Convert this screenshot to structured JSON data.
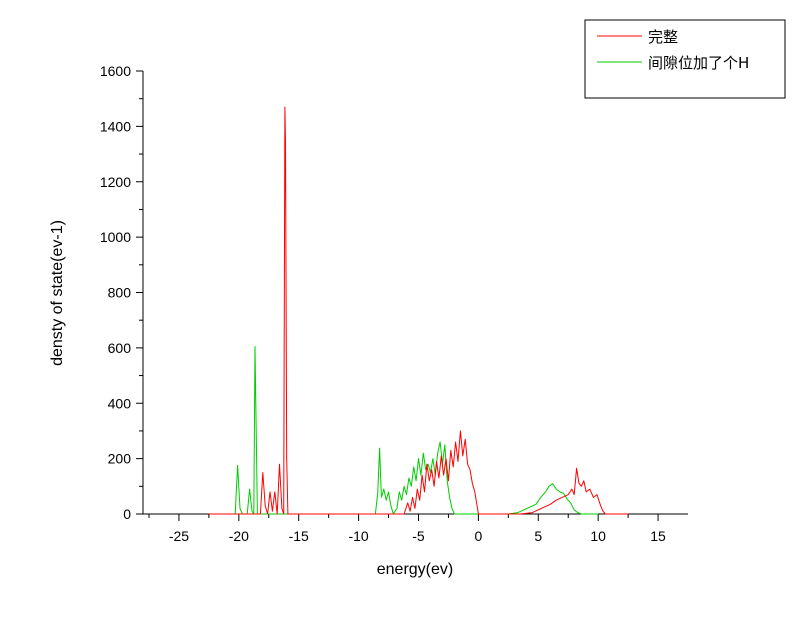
{
  "chart_data": {
    "type": "line",
    "xlabel": "energy(ev)",
    "ylabel": "densty of state(ev-1)",
    "xlim": [
      -28,
      17.5
    ],
    "ylim": [
      0,
      1600
    ],
    "xticks": [
      -25,
      -20,
      -15,
      -10,
      -5,
      0,
      5,
      10,
      15
    ],
    "yticks": [
      0,
      200,
      400,
      600,
      800,
      1000,
      1200,
      1400,
      1600
    ],
    "legend_position": "top-right",
    "series": [
      {
        "name": "完整",
        "color": "#ff0000",
        "points": [
          [
            -22.5,
            0
          ],
          [
            -18.2,
            0
          ],
          [
            -18.0,
            150
          ],
          [
            -17.8,
            30
          ],
          [
            -17.6,
            0
          ],
          [
            -17.4,
            80
          ],
          [
            -17.2,
            10
          ],
          [
            -17.0,
            80
          ],
          [
            -16.8,
            0
          ],
          [
            -16.6,
            180
          ],
          [
            -16.4,
            20
          ],
          [
            -16.25,
            0
          ],
          [
            -16.15,
            1470
          ],
          [
            -16.1,
            1340
          ],
          [
            -16.0,
            200
          ],
          [
            -15.9,
            0
          ],
          [
            -6.2,
            0
          ],
          [
            -5.9,
            40
          ],
          [
            -5.7,
            10
          ],
          [
            -5.5,
            60
          ],
          [
            -5.3,
            20
          ],
          [
            -5.1,
            90
          ],
          [
            -4.9,
            50
          ],
          [
            -4.7,
            140
          ],
          [
            -4.5,
            80
          ],
          [
            -4.3,
            180
          ],
          [
            -4.1,
            120
          ],
          [
            -3.9,
            160
          ],
          [
            -3.7,
            100
          ],
          [
            -3.5,
            190
          ],
          [
            -3.3,
            130
          ],
          [
            -3.1,
            210
          ],
          [
            -2.9,
            140
          ],
          [
            -2.7,
            200
          ],
          [
            -2.5,
            120
          ],
          [
            -2.3,
            230
          ],
          [
            -2.1,
            170
          ],
          [
            -1.9,
            260
          ],
          [
            -1.7,
            190
          ],
          [
            -1.5,
            300
          ],
          [
            -1.3,
            210
          ],
          [
            -1.1,
            270
          ],
          [
            -0.9,
            180
          ],
          [
            -0.7,
            160
          ],
          [
            -0.5,
            110
          ],
          [
            -0.3,
            80
          ],
          [
            -0.15,
            40
          ],
          [
            0.0,
            0
          ],
          [
            3.5,
            0
          ],
          [
            4.5,
            5
          ],
          [
            5.0,
            15
          ],
          [
            5.5,
            25
          ],
          [
            6.0,
            35
          ],
          [
            6.5,
            50
          ],
          [
            7.0,
            60
          ],
          [
            7.5,
            70
          ],
          [
            7.8,
            90
          ],
          [
            8.0,
            70
          ],
          [
            8.2,
            165
          ],
          [
            8.4,
            110
          ],
          [
            8.6,
            100
          ],
          [
            8.8,
            120
          ],
          [
            9.0,
            80
          ],
          [
            9.3,
            90
          ],
          [
            9.6,
            60
          ],
          [
            9.9,
            70
          ],
          [
            10.2,
            30
          ],
          [
            10.4,
            10
          ],
          [
            10.6,
            0
          ],
          [
            12.5,
            0
          ]
        ]
      },
      {
        "name": "间隙位加了个H",
        "color": "#00cc00",
        "points": [
          [
            -22.5,
            0
          ],
          [
            -20.3,
            0
          ],
          [
            -20.1,
            175
          ],
          [
            -19.9,
            20
          ],
          [
            -19.7,
            0
          ],
          [
            -19.3,
            0
          ],
          [
            -19.1,
            90
          ],
          [
            -18.9,
            10
          ],
          [
            -18.75,
            0
          ],
          [
            -18.65,
            605
          ],
          [
            -18.55,
            300
          ],
          [
            -18.45,
            0
          ],
          [
            -8.6,
            0
          ],
          [
            -8.4,
            80
          ],
          [
            -8.25,
            238
          ],
          [
            -8.1,
            60
          ],
          [
            -7.9,
            90
          ],
          [
            -7.7,
            50
          ],
          [
            -7.5,
            80
          ],
          [
            -7.3,
            30
          ],
          [
            -7.1,
            0
          ],
          [
            -6.8,
            20
          ],
          [
            -6.6,
            80
          ],
          [
            -6.4,
            50
          ],
          [
            -6.2,
            100
          ],
          [
            -6.0,
            70
          ],
          [
            -5.8,
            130
          ],
          [
            -5.6,
            100
          ],
          [
            -5.4,
            170
          ],
          [
            -5.2,
            120
          ],
          [
            -5.0,
            200
          ],
          [
            -4.8,
            140
          ],
          [
            -4.6,
            220
          ],
          [
            -4.4,
            160
          ],
          [
            -4.2,
            180
          ],
          [
            -4.0,
            150
          ],
          [
            -3.8,
            200
          ],
          [
            -3.6,
            140
          ],
          [
            -3.4,
            220
          ],
          [
            -3.2,
            260
          ],
          [
            -3.0,
            180
          ],
          [
            -2.8,
            250
          ],
          [
            -2.6,
            120
          ],
          [
            -2.4,
            60
          ],
          [
            -2.2,
            20
          ],
          [
            -2.0,
            0
          ],
          [
            2.5,
            0
          ],
          [
            3.3,
            5
          ],
          [
            3.8,
            15
          ],
          [
            4.3,
            25
          ],
          [
            4.8,
            35
          ],
          [
            5.2,
            60
          ],
          [
            5.6,
            80
          ],
          [
            5.9,
            100
          ],
          [
            6.2,
            110
          ],
          [
            6.5,
            90
          ],
          [
            6.8,
            80
          ],
          [
            7.1,
            75
          ],
          [
            7.4,
            55
          ],
          [
            7.7,
            40
          ],
          [
            8.0,
            15
          ],
          [
            8.3,
            5
          ],
          [
            8.6,
            0
          ],
          [
            10.0,
            0
          ]
        ]
      }
    ]
  }
}
